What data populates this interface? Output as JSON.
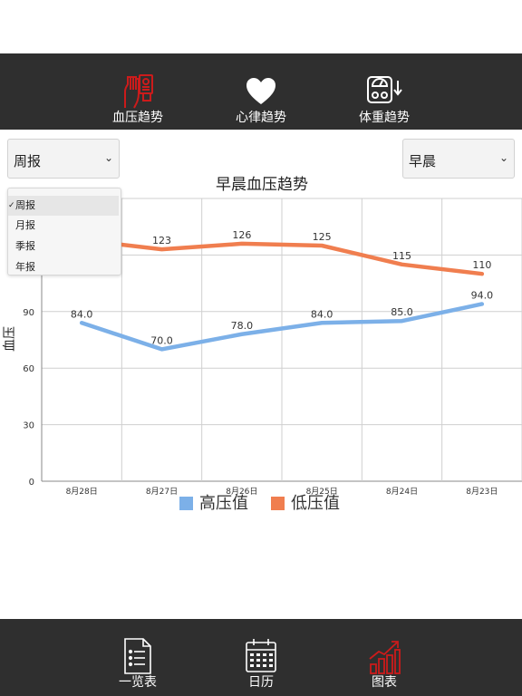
{
  "top_tabs": [
    {
      "label": "血压趋势",
      "icon": "blood-pressure-icon",
      "active": true
    },
    {
      "label": "心律趋势",
      "icon": "heart-icon",
      "active": false
    },
    {
      "label": "体重趋势",
      "icon": "scale-icon",
      "active": false
    }
  ],
  "period_select": {
    "value": "周报",
    "options": [
      "周报",
      "月报",
      "季报",
      "年报"
    ]
  },
  "time_select": {
    "value": "早晨"
  },
  "colors": {
    "accent": "#cc1b1b",
    "bar": "#2f2f2f",
    "high_series": "#7cb0e8",
    "low_series": "#f07e4f"
  },
  "chart_data": {
    "type": "line",
    "title": "早晨血压趋势",
    "ylabel": "血压",
    "xlabel": "",
    "categories": [
      "8月28日",
      "8月27日",
      "8月26日",
      "8月25日",
      "8月24日",
      "8月23日"
    ],
    "ylim": [
      0,
      150
    ],
    "yticks": [
      0,
      30,
      60,
      90
    ],
    "grid": true,
    "legend": "bottom",
    "series": [
      {
        "name": "高压值",
        "values": [
          84.0,
          70.0,
          78.0,
          84.0,
          85.0,
          94.0
        ],
        "labels": [
          "84.0",
          "70.0",
          "78.0",
          "84.0",
          "85.0",
          "94.0"
        ],
        "color": "#7cb0e8"
      },
      {
        "name": "低压值",
        "values": [
          128,
          123,
          126,
          125,
          115,
          110
        ],
        "labels": [
          "",
          "123",
          "126",
          "125",
          "115",
          "110"
        ],
        "color": "#f07e4f"
      }
    ]
  },
  "bottom_tabs": [
    {
      "label": "一览表",
      "icon": "list-icon",
      "active": false
    },
    {
      "label": "日历",
      "icon": "calendar-icon",
      "active": false
    },
    {
      "label": "图表",
      "icon": "chart-icon",
      "active": true
    }
  ]
}
